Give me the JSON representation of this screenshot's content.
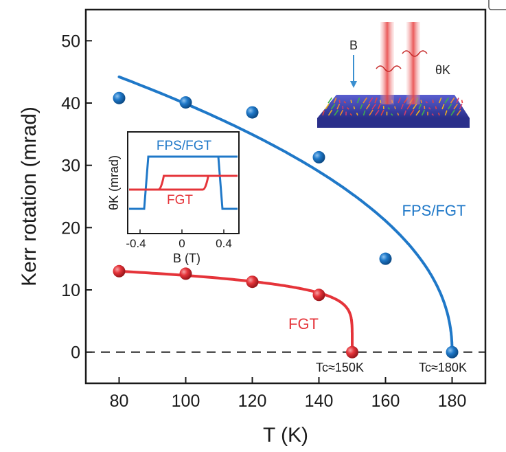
{
  "chart_data": {
    "type": "scatter",
    "xlabel": "T (K)",
    "ylabel": "Kerr rotation (mrad)",
    "xlim": [
      70,
      190
    ],
    "ylim": [
      -5,
      55
    ],
    "xticks": [
      80,
      100,
      120,
      140,
      160,
      180
    ],
    "yticks": [
      0,
      10,
      20,
      30,
      40,
      50
    ],
    "grid": false,
    "series": [
      {
        "name": "FPS/FGT",
        "color": "#1f78c8",
        "points": [
          {
            "x": 80,
            "y": 40.8
          },
          {
            "x": 100,
            "y": 40.1
          },
          {
            "x": 120,
            "y": 38.5
          },
          {
            "x": 140,
            "y": 31.3
          },
          {
            "x": 160,
            "y": 15.0
          },
          {
            "x": 180,
            "y": 0
          }
        ],
        "fit": {
          "tc": 180,
          "x_start": 80,
          "y_start": 44.2
        }
      },
      {
        "name": "FGT",
        "color": "#e5343a",
        "points": [
          {
            "x": 80,
            "y": 13.0
          },
          {
            "x": 100,
            "y": 12.6
          },
          {
            "x": 120,
            "y": 11.3
          },
          {
            "x": 140,
            "y": 9.2
          },
          {
            "x": 150,
            "y": 0
          }
        ],
        "fit": {
          "tc": 150,
          "x_start": 80,
          "y_start": 13.0
        }
      }
    ],
    "reference_line": {
      "y": 0,
      "style": "dashed"
    },
    "annotations": [
      "Tc≈150K",
      "Tc≈180K"
    ],
    "inset": {
      "xlabel": "B (T)",
      "ylabel": "θK (mrad)",
      "xticks": [
        "-0.4",
        "0",
        "0.4"
      ],
      "xlim": [
        -0.45,
        0.45
      ],
      "legend": [
        "FPS/FGT",
        "FGT"
      ],
      "loops": [
        {
          "name": "FPS/FGT",
          "color": "#1f78c8",
          "coercive_field": 0.3
        },
        {
          "name": "FGT",
          "color": "#e5343a",
          "coercive_field": 0.18
        }
      ]
    },
    "schematic": {
      "field_label": "B",
      "rotation_label": "θK"
    }
  }
}
